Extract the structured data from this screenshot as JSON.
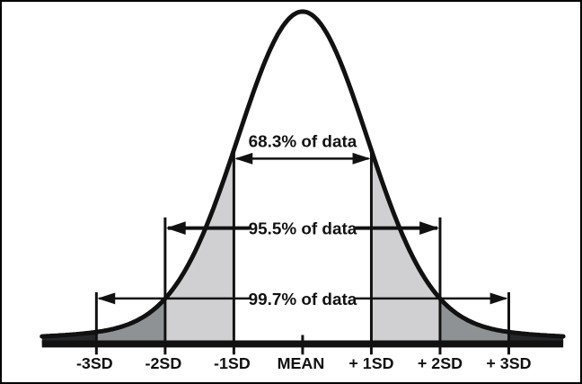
{
  "chart_data": {
    "type": "area",
    "curve": "normal-distribution-bell-curve",
    "x_tick_labels": [
      "-3SD",
      "-2SD",
      "-1SD",
      "MEAN",
      "+ 1SD",
      "+ 2SD",
      "+ 3SD"
    ],
    "annotations": [
      {
        "label": "68.3% of data",
        "from": "-1SD",
        "to": "+1SD",
        "coverage_pct": 68.3
      },
      {
        "label": "95.5% of data",
        "from": "-2SD",
        "to": "+2SD",
        "coverage_pct": 95.5
      },
      {
        "label": "99.7% of data",
        "from": "-3SD",
        "to": "+3SD",
        "coverage_pct": 99.7
      }
    ],
    "region_colors": {
      "mean_to_1sd": "#ffffff",
      "sd1_to_sd2": "#d0d0d2",
      "sd2_to_sd3": "#8f9294",
      "beyond_3sd": "#25282b"
    },
    "line_color": "#111111",
    "background": "#ffffff",
    "border_color": "#000000"
  }
}
